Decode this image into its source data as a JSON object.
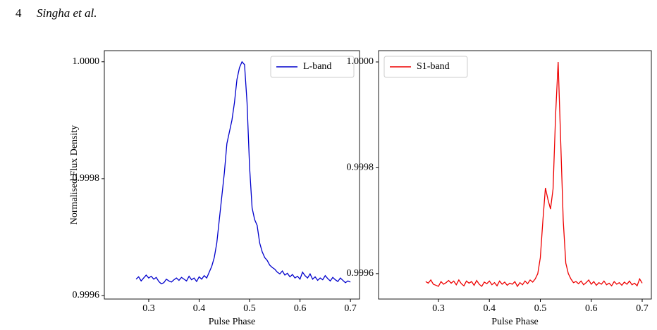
{
  "header": {
    "page": "4",
    "authors": "Singha et al."
  },
  "chart_data": [
    {
      "type": "line",
      "xlabel": "Pulse Phase",
      "ylabel": "Normalised Flux Density",
      "legend": "upper right",
      "xlim": [
        0.212,
        0.718
      ],
      "ylim": [
        0.999594,
        1.000019
      ],
      "xticks": [
        0.3,
        0.4,
        0.5,
        0.6,
        0.7
      ],
      "yticks": [
        {
          "value": 1.0,
          "label": "1.0000"
        },
        0.9998,
        0.9996
      ],
      "x": [
        0.275,
        0.28,
        0.285,
        0.29,
        0.295,
        0.3,
        0.305,
        0.31,
        0.315,
        0.32,
        0.325,
        0.33,
        0.335,
        0.34,
        0.345,
        0.35,
        0.355,
        0.36,
        0.365,
        0.37,
        0.375,
        0.38,
        0.385,
        0.39,
        0.395,
        0.4,
        0.405,
        0.41,
        0.415,
        0.42,
        0.425,
        0.43,
        0.435,
        0.44,
        0.445,
        0.45,
        0.455,
        0.46,
        0.465,
        0.47,
        0.475,
        0.48,
        0.485,
        0.49,
        0.495,
        0.5,
        0.505,
        0.51,
        0.515,
        0.52,
        0.525,
        0.53,
        0.535,
        0.54,
        0.545,
        0.55,
        0.555,
        0.56,
        0.565,
        0.57,
        0.575,
        0.58,
        0.585,
        0.59,
        0.595,
        0.6,
        0.605,
        0.61,
        0.615,
        0.62,
        0.625,
        0.63,
        0.635,
        0.64,
        0.645,
        0.65,
        0.655,
        0.66,
        0.665,
        0.67,
        0.675,
        0.68,
        0.685,
        0.69,
        0.695,
        0.7
      ],
      "series": [
        {
          "name": "L-band",
          "color": "#0000cc",
          "values": [
            0.999628,
            0.999632,
            0.999625,
            0.99963,
            0.999635,
            0.99963,
            0.999633,
            0.999628,
            0.999631,
            0.999624,
            0.99962,
            0.999622,
            0.999628,
            0.999625,
            0.999623,
            0.999627,
            0.99963,
            0.999626,
            0.999631,
            0.999628,
            0.999625,
            0.999633,
            0.999627,
            0.99963,
            0.999624,
            0.999632,
            0.999628,
            0.999634,
            0.99963,
            0.99964,
            0.99965,
            0.999665,
            0.99969,
            0.99973,
            0.99977,
            0.99981,
            0.99986,
            0.99988,
            0.9999,
            0.99993,
            0.99997,
            0.99999,
            1.0,
            0.999995,
            0.99993,
            0.99982,
            0.99975,
            0.99973,
            0.99972,
            0.99969,
            0.999675,
            0.999665,
            0.99966,
            0.999652,
            0.999648,
            0.999645,
            0.99964,
            0.999637,
            0.999642,
            0.999635,
            0.999638,
            0.999632,
            0.999636,
            0.99963,
            0.999633,
            0.999628,
            0.99964,
            0.999634,
            0.99963,
            0.999637,
            0.999628,
            0.999632,
            0.999626,
            0.99963,
            0.999627,
            0.999634,
            0.999629,
            0.999625,
            0.999631,
            0.999627,
            0.999624,
            0.99963,
            0.999626,
            0.999622,
            0.999625,
            0.999623
          ]
        }
      ]
    },
    {
      "type": "line",
      "xlabel": "Pulse Phase",
      "legend": "upper left",
      "xlim": [
        0.1824,
        0.718
      ],
      "ylim": [
        0.999552,
        1.0000213
      ],
      "xticks": [
        0.3,
        0.4,
        0.5,
        0.6,
        0.7
      ],
      "yticks": [
        {
          "value": 1.0,
          "label": "1.0000"
        },
        0.9998,
        0.9996
      ],
      "x": [
        0.275,
        0.28,
        0.285,
        0.29,
        0.295,
        0.3,
        0.305,
        0.31,
        0.315,
        0.32,
        0.325,
        0.33,
        0.335,
        0.34,
        0.345,
        0.35,
        0.355,
        0.36,
        0.365,
        0.37,
        0.375,
        0.38,
        0.385,
        0.39,
        0.395,
        0.4,
        0.405,
        0.41,
        0.415,
        0.42,
        0.425,
        0.43,
        0.435,
        0.44,
        0.445,
        0.45,
        0.455,
        0.46,
        0.465,
        0.47,
        0.475,
        0.48,
        0.485,
        0.49,
        0.495,
        0.5,
        0.505,
        0.51,
        0.515,
        0.52,
        0.525,
        0.53,
        0.535,
        0.54,
        0.545,
        0.55,
        0.555,
        0.56,
        0.565,
        0.57,
        0.575,
        0.58,
        0.585,
        0.59,
        0.595,
        0.6,
        0.605,
        0.61,
        0.615,
        0.62,
        0.625,
        0.63,
        0.635,
        0.64,
        0.645,
        0.65,
        0.655,
        0.66,
        0.665,
        0.67,
        0.675,
        0.68,
        0.685,
        0.69,
        0.695,
        0.7
      ],
      "series": [
        {
          "name": "S1-band",
          "color": "#ee0000",
          "values": [
            0.999585,
            0.999582,
            0.999588,
            0.99958,
            0.999578,
            0.999576,
            0.999585,
            0.99958,
            0.999583,
            0.999587,
            0.999582,
            0.999586,
            0.999579,
            0.999588,
            0.999581,
            0.999577,
            0.999586,
            0.999582,
            0.999585,
            0.999578,
            0.999587,
            0.99958,
            0.999576,
            0.999584,
            0.999581,
            0.999586,
            0.999579,
            0.999583,
            0.999577,
            0.999586,
            0.99958,
            0.999584,
            0.999578,
            0.999582,
            0.99958,
            0.999585,
            0.999576,
            0.999583,
            0.999579,
            0.999586,
            0.999581,
            0.999588,
            0.999584,
            0.99959,
            0.9996,
            0.99963,
            0.9997,
            0.999762,
            0.99974,
            0.999722,
            0.99976,
            0.9999,
            1.0,
            0.99985,
            0.9997,
            0.99962,
            0.9996,
            0.99959,
            0.999583,
            0.999585,
            0.999581,
            0.999586,
            0.999579,
            0.999583,
            0.999588,
            0.99958,
            0.999585,
            0.999578,
            0.999583,
            0.99958,
            0.999586,
            0.999579,
            0.999582,
            0.999577,
            0.999585,
            0.99958,
            0.999583,
            0.999578,
            0.999584,
            0.99958,
            0.999586,
            0.999579,
            0.999582,
            0.999577,
            0.99959,
            0.999582
          ]
        }
      ]
    }
  ]
}
